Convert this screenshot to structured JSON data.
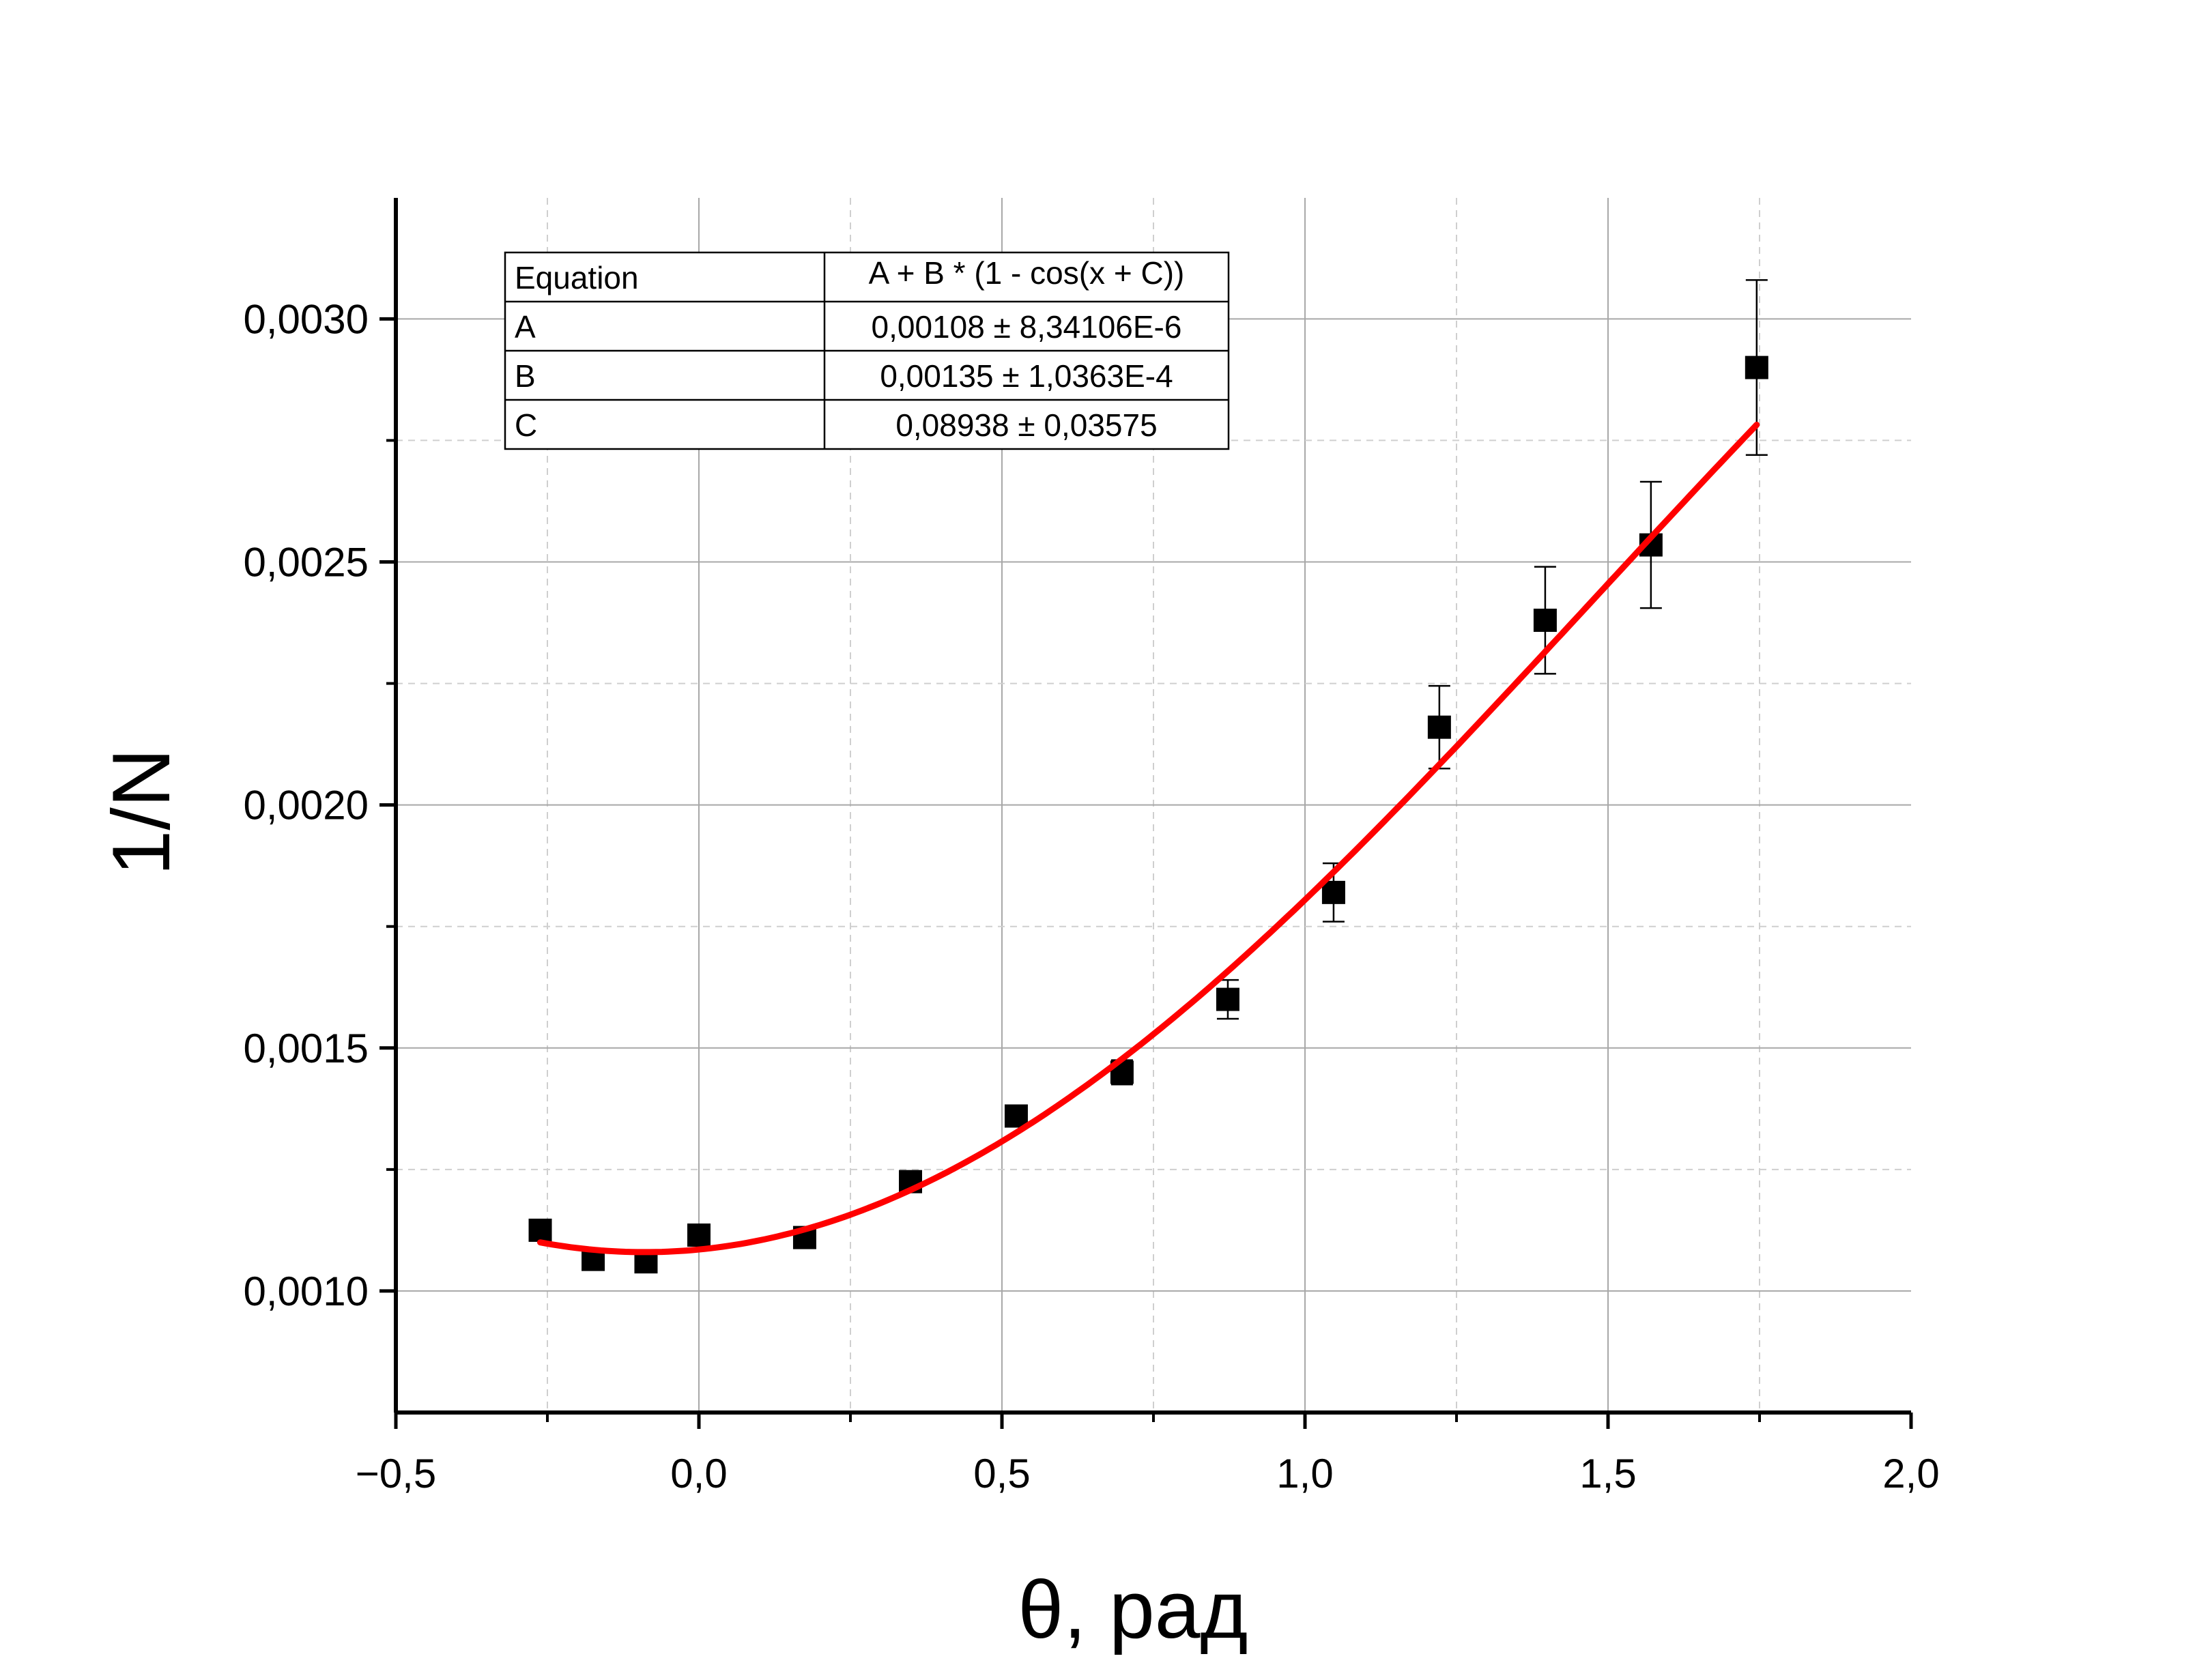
{
  "chart_data": {
    "type": "scatter",
    "xlabel": "θ, рад",
    "ylabel": "1/N",
    "xlim": [
      -0.5,
      2.0
    ],
    "ylim": [
      0.00075,
      0.003249
    ],
    "grid": true,
    "x_ticks": [
      -0.5,
      0.0,
      0.5,
      1.0,
      1.5,
      2.0
    ],
    "x_tick_labels": [
      "−0,5",
      "0,0",
      "0,5",
      "1,0",
      "1,5",
      "2,0"
    ],
    "y_ticks": [
      0.001,
      0.0015,
      0.002,
      0.0025,
      0.003
    ],
    "y_tick_labels": [
      "0,0010",
      "0,0015",
      "0,0020",
      "0,0025",
      "0,0030"
    ],
    "series": [
      {
        "kind": "points",
        "marker": "square",
        "color": "#000000",
        "points": [
          {
            "x": -0.2618,
            "y": 0.001125,
            "err": 8e-06
          },
          {
            "x": -0.1745,
            "y": 0.001065,
            "err": 8e-06
          },
          {
            "x": -0.0873,
            "y": 0.00106,
            "err": 8e-06
          },
          {
            "x": 0.0,
            "y": 0.001115,
            "err": 8e-06
          },
          {
            "x": 0.1745,
            "y": 0.00111,
            "err": 1e-05
          },
          {
            "x": 0.3491,
            "y": 0.001225,
            "err": 1.2e-05
          },
          {
            "x": 0.5236,
            "y": 0.00136,
            "err": 1.5e-05
          },
          {
            "x": 0.6981,
            "y": 0.00145,
            "err": 2.5e-05
          },
          {
            "x": 0.8727,
            "y": 0.0016,
            "err": 4e-05
          },
          {
            "x": 1.0472,
            "y": 0.00182,
            "err": 6e-05
          },
          {
            "x": 1.2217,
            "y": 0.00216,
            "err": 8.5e-05
          },
          {
            "x": 1.3963,
            "y": 0.00238,
            "err": 0.00011
          },
          {
            "x": 1.5708,
            "y": 0.002535,
            "err": 0.00013
          },
          {
            "x": 1.7453,
            "y": 0.0029,
            "err": 0.00018
          }
        ]
      },
      {
        "kind": "fit",
        "color": "#ff0000",
        "function": "A + B * (1 - cos(x + C))",
        "params": {
          "A": 0.00108,
          "B": 0.00135,
          "C": 0.08938
        },
        "x_range": [
          -0.2618,
          1.7453
        ]
      }
    ]
  },
  "fit_table": {
    "rows": [
      [
        "Equation",
        "A + B * (1 - cos(x + C))"
      ],
      [
        "A",
        "0,00108 ± 8,34106E-6"
      ],
      [
        "B",
        "0,00135 ± 1,0363E-4"
      ],
      [
        "C",
        "0,08938 ± 0,03575"
      ]
    ]
  }
}
